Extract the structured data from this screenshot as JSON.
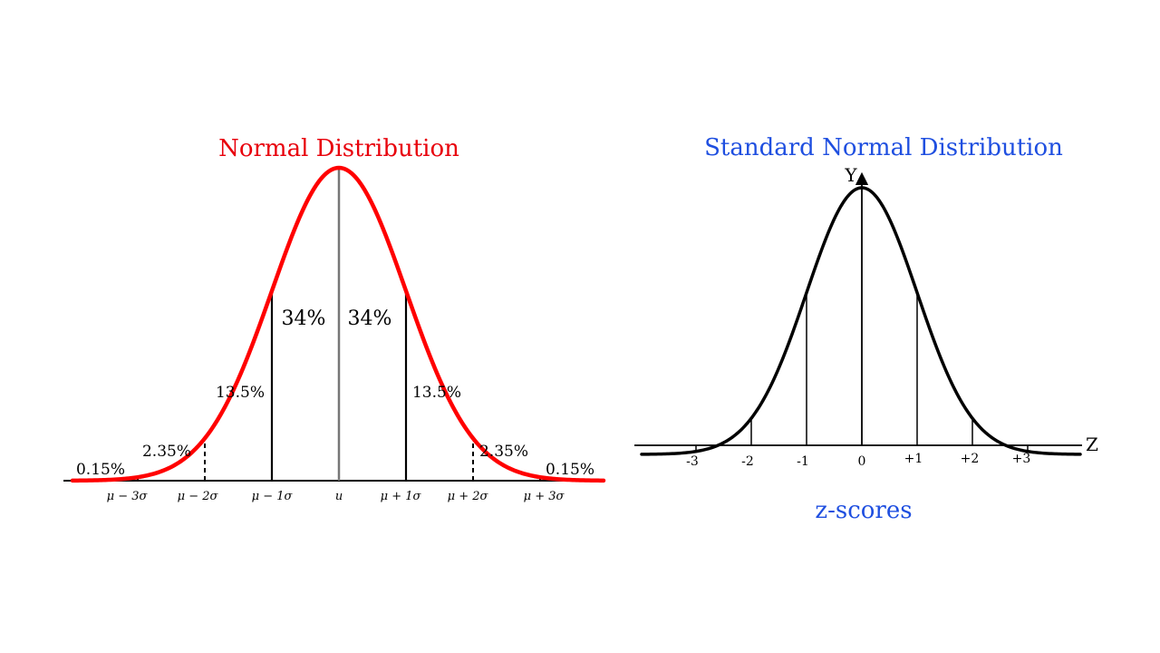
{
  "normal": {
    "title": "Normal Distribution",
    "title_color": "#e8000b",
    "curve_color": "#ff0000",
    "mean_line_color": "#777777",
    "percent_labels": {
      "center_left": "34%",
      "center_right": "34%",
      "mid_left": "13.5%",
      "mid_right": "13.5%",
      "outer_left": "2.35%",
      "outer_right": "2.35%",
      "tail_left": "0.15%",
      "tail_right": "0.15%"
    },
    "x_labels": [
      "μ − 3σ",
      "μ − 2σ",
      "μ − 1σ",
      "u",
      "μ + 1σ",
      "μ + 2σ",
      "μ + 3σ"
    ]
  },
  "standard": {
    "title": "Standard Normal Distribution",
    "title_color": "#1f4fe0",
    "curve_color": "#000000",
    "y_axis_label": "Y",
    "x_axis_label": "Z",
    "z_ticks": [
      "-3",
      "-2",
      "-1",
      "0",
      "+1",
      "+2",
      "+3"
    ],
    "caption": "z-scores",
    "caption_color": "#1f4fe0"
  }
}
